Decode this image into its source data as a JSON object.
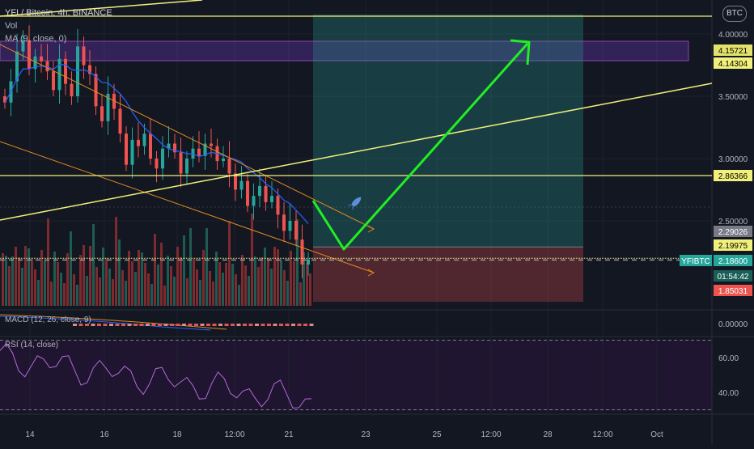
{
  "header": {
    "symbol_line": "YFI / Bitcoin, 4h, BINANCE",
    "vol_label": "Vol",
    "ma_label": "MA (9, close, 0)",
    "currency": "BTC"
  },
  "panes": {
    "macd_label": "MACD (12, 26, close, 9)",
    "rsi_label": "RSI (14, close)"
  },
  "chart_data": {
    "type": "candlestick",
    "price_axis": {
      "ticks": [
        "4.00000",
        "3.50000",
        "3.00000",
        "2.50000"
      ],
      "tick_values": [
        4.0,
        3.5,
        3.0,
        2.5
      ]
    },
    "macd_axis": {
      "ticks": [
        "0.00000"
      ]
    },
    "rsi_axis": {
      "ticks": [
        "60.00",
        "40.00"
      ],
      "tick_values": [
        60,
        40
      ]
    },
    "time_axis": {
      "ticks": [
        "14",
        "16",
        "18",
        "12:00",
        "21",
        "23",
        "25",
        "12:00",
        "28",
        "12:00",
        "Oct"
      ]
    },
    "price_labels": [
      {
        "value": "4.15721",
        "numeric": 4.15721,
        "color": "#e3e36c",
        "text_color": "#000000"
      },
      {
        "value": "4.14304",
        "numeric": 4.14304,
        "color": "#f0f07a",
        "text_color": "#000000"
      },
      {
        "value": "2.86366",
        "numeric": 2.86366,
        "color": "#f0f07a",
        "text_color": "#000000"
      },
      {
        "value": "2.29026",
        "numeric": 2.29026,
        "color": "#787b86",
        "text_color": "#ffffff"
      },
      {
        "value": "2.19975",
        "numeric": 2.19975,
        "color": "#f0f07a",
        "text_color": "#000000"
      },
      {
        "value": "2.18600",
        "numeric": 2.186,
        "color": "#26a69a",
        "text_color": "#ffffff"
      },
      {
        "value": "01:54:42",
        "numeric": 2.05,
        "color": "#1b5e57",
        "text_color": "#ffffff"
      },
      {
        "value": "1.85031",
        "numeric": 1.85031,
        "color": "#ef5350",
        "text_color": "#ffffff"
      }
    ],
    "symbol_tag": "YFIBTC",
    "price_approx": {
      "series": [
        {
          "name": "YFI/BTC close (approx.)",
          "values": [
            3.45,
            3.62,
            3.86,
            3.95,
            3.72,
            3.82,
            3.78,
            3.7,
            3.55,
            3.8,
            3.6,
            3.5,
            3.9,
            3.75,
            3.68,
            3.42,
            3.3,
            3.52,
            3.4,
            3.2,
            2.95,
            3.15,
            3.1,
            3.2,
            3.0,
            2.92,
            3.08,
            3.12,
            3.05,
            2.88,
            3.0,
            3.08,
            3.02,
            3.12,
            3.1,
            2.98,
            3.0,
            2.88,
            2.75,
            2.82,
            2.62,
            2.7,
            2.78,
            2.65,
            2.7,
            2.55,
            2.42,
            2.5,
            2.35,
            2.15,
            2.19
          ]
        }
      ]
    },
    "position_tool": {
      "entry": 2.29026,
      "target": 4.15721,
      "stop": 1.85031,
      "colors": {
        "profit": "#26a69a",
        "loss": "#ef5350"
      }
    },
    "horizontal_levels": [
      4.14304,
      2.86366,
      2.19975
    ],
    "grid": true
  }
}
